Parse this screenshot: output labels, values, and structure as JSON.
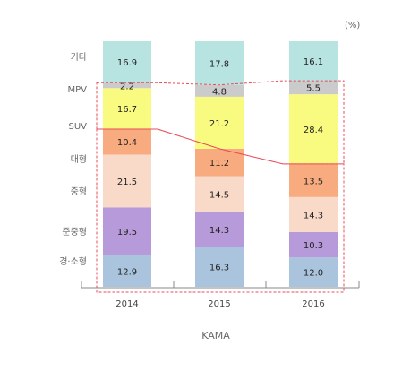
{
  "chart_data": {
    "type": "bar",
    "stacked": true,
    "unit": "(%)",
    "source": "KAMA",
    "categories": [
      "2014",
      "2015",
      "2016"
    ],
    "series": [
      {
        "name": "경·소형",
        "values": [
          12.9,
          16.3,
          12.0
        ],
        "color": "#a9c4dc"
      },
      {
        "name": "준중형",
        "values": [
          19.5,
          14.3,
          10.3
        ],
        "color": "#b79ad9"
      },
      {
        "name": "중형",
        "values": [
          21.5,
          14.5,
          14.3
        ],
        "color": "#f9d9c8"
      },
      {
        "name": "대형",
        "values": [
          10.4,
          11.2,
          13.5
        ],
        "color": "#f8ab7f"
      },
      {
        "name": "SUV",
        "values": [
          16.7,
          21.2,
          28.4
        ],
        "color": "#f8fb7f"
      },
      {
        "name": "MPV",
        "values": [
          2.2,
          4.8,
          5.5
        ],
        "color": "#cbcbcb"
      },
      {
        "name": "기타",
        "values": [
          16.9,
          17.8,
          16.1
        ],
        "color": "#b7e3e1"
      }
    ],
    "highlight_color": "#e84b5b"
  }
}
